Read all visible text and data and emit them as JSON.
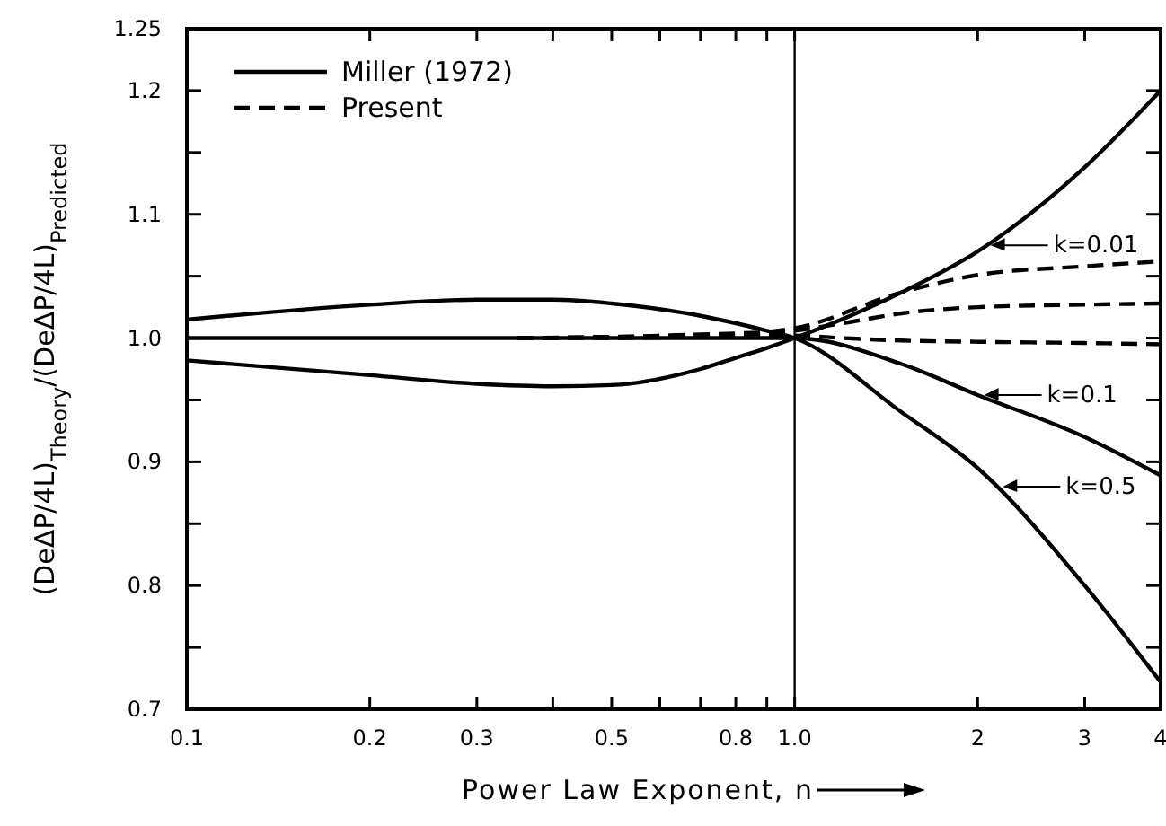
{
  "chart_data": {
    "type": "line",
    "xlabel": "Power Law Exponent, n",
    "ylabel": "(DeΔP/4L)$_{Theory}$/(DeΔP/4L)$_{Predicted}$",
    "log": "x",
    "xlim": [
      0.1,
      4
    ],
    "ylim": [
      0.7,
      1.25
    ],
    "xticks": [
      0.1,
      0.2,
      0.3,
      {
        "value": 0.4,
        "label": null
      },
      0.5,
      {
        "value": 0.6,
        "label": null
      },
      {
        "value": 0.7,
        "label": null
      },
      0.8,
      {
        "value": 0.9,
        "label": null
      },
      {
        "value": 1,
        "label": "1.0"
      },
      2,
      3,
      4
    ],
    "yticks": [
      0.7,
      {
        "value": 0.75,
        "label": null
      },
      0.8,
      {
        "value": 0.85,
        "label": null
      },
      0.9,
      {
        "value": 0.95,
        "label": null
      },
      {
        "value": 1,
        "label": "1.0"
      },
      {
        "value": 1.05,
        "label": null
      },
      1.1,
      {
        "value": 1.15,
        "label": null
      },
      1.2,
      1.25
    ],
    "grid": false,
    "legend": "top left",
    "ref_lines": [
      {
        "axis": "x",
        "value": 1,
        "color": "#000000"
      }
    ],
    "series": [
      {
        "name": "Miller (1972)",
        "color": "#000000",
        "line_style": "solid",
        "x": [
          0.1,
          0.2,
          0.3,
          0.4,
          0.5,
          0.7,
          0.8,
          0.9,
          1,
          1.5,
          2,
          3,
          4
        ],
        "values": [
          0.982,
          0.97,
          0.963,
          0.961,
          0.962,
          0.975,
          0.984,
          0.992,
          1,
          1.037,
          1.07,
          1.138,
          1.2
        ]
      },
      {
        "color": "#000000",
        "line_style": "solid",
        "x": [
          0.1,
          0.2,
          0.3,
          0.5,
          0.7,
          0.9,
          1,
          1.5,
          2,
          3,
          4
        ],
        "values": [
          1,
          1,
          1,
          1,
          1,
          1,
          1,
          0.979,
          0.954,
          0.92,
          0.889
        ]
      },
      {
        "color": "#000000",
        "line_style": "solid",
        "x": [
          0.1,
          0.2,
          0.3,
          0.4,
          0.5,
          0.7,
          0.8,
          0.9,
          1,
          1.5,
          2,
          3,
          4
        ],
        "values": [
          1.015,
          1.027,
          1.031,
          1.031,
          1.028,
          1.018,
          1.012,
          1.006,
          1,
          0.94,
          0.895,
          0.8,
          0.722
        ]
      },
      {
        "name": "Present",
        "color": "#000000",
        "line_style": "dashed",
        "x": [
          0.35,
          0.5,
          0.7,
          0.9,
          1,
          1.5,
          2,
          3,
          4
        ],
        "values": [
          1,
          1.001,
          1.003,
          1.005,
          1.008,
          1.037,
          1.051,
          1.058,
          1.062
        ]
      },
      {
        "color": "#000000",
        "line_style": "dashed",
        "x": [
          0.35,
          0.5,
          0.7,
          0.9,
          1,
          1.2,
          1.5,
          2,
          3,
          4
        ],
        "values": [
          1,
          1.001,
          1.002,
          1.004,
          1.006,
          1.012,
          1.02,
          1.025,
          1.027,
          1.028
        ]
      },
      {
        "color": "#000000",
        "line_style": "dashed",
        "x": [
          0.35,
          0.5,
          0.7,
          0.9,
          1,
          1.2,
          1.5,
          2,
          3,
          4
        ],
        "values": [
          1,
          1,
          1.001,
          1.002,
          1.002,
          1,
          0.998,
          0.997,
          0.996,
          0.995
        ]
      }
    ],
    "annotations": [
      {
        "text": "k=0.01",
        "x": 2.1,
        "y": 1.075
      },
      {
        "text": "k=0.1",
        "x": 2.05,
        "y": 0.954
      },
      {
        "text": "k=0.5",
        "x": 2.2,
        "y": 0.88
      }
    ]
  }
}
